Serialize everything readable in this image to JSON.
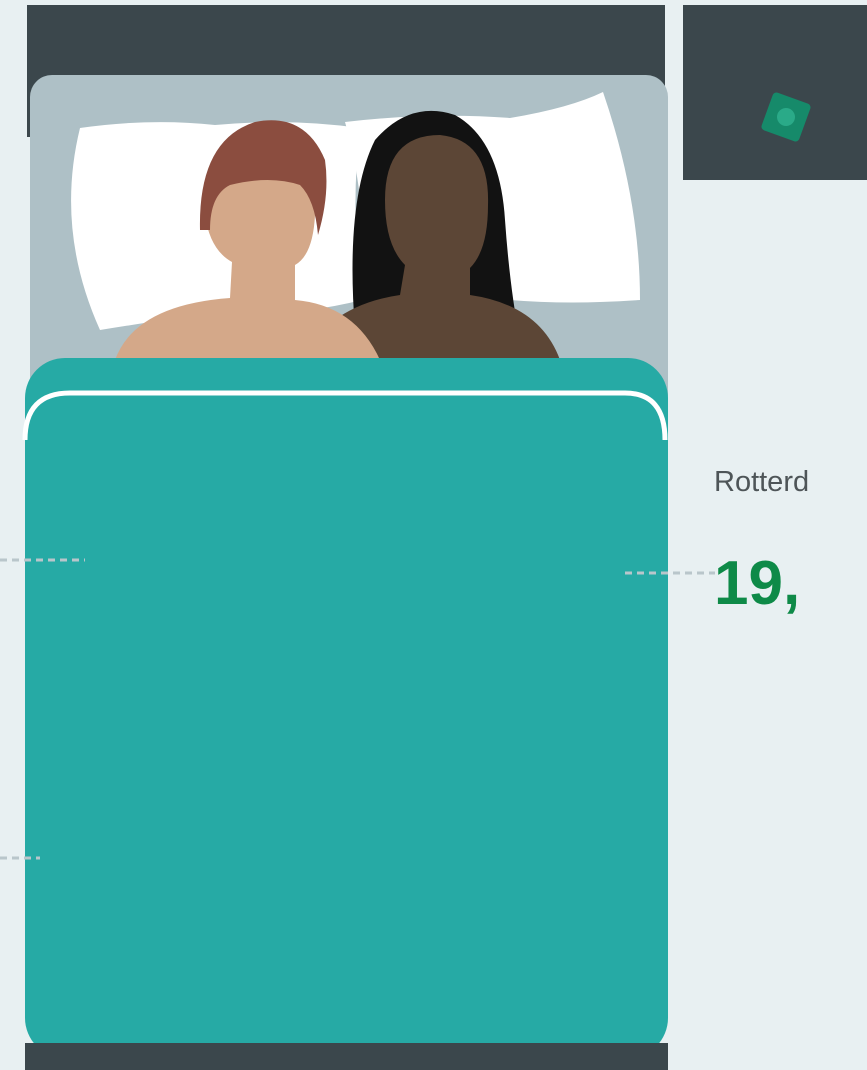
{
  "caption": {
    "city": "Rotterd",
    "figure": "19,"
  }
}
